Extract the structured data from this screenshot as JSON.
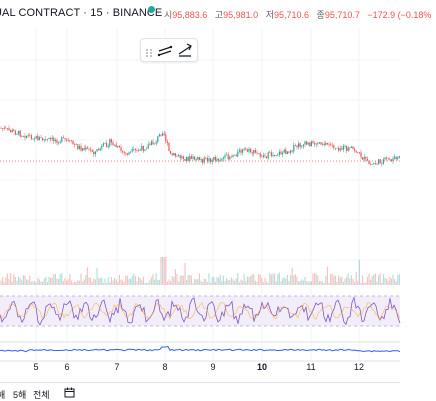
{
  "header": {
    "symbol": "UAL CONTRACT · 15 · BINANCE",
    "ohlc": [
      {
        "label": "시",
        "value": "95,883.6"
      },
      {
        "label": "고",
        "value": "95,981.0"
      },
      {
        "label": "저",
        "value": "95,710.6"
      },
      {
        "label": "종",
        "value": "95,710.7"
      }
    ],
    "change": "−172.9 (−0.18%",
    "status_color": "#26a69a"
  },
  "toolbox": {
    "icons": [
      "drag-handle-icon",
      "compare-icon",
      "indicators-icon"
    ]
  },
  "x_axis": {
    "labels": [
      "5",
      "6",
      "7",
      "8",
      "9",
      "10",
      "11",
      "12"
    ]
  },
  "bottom_bar": {
    "ranges": [
      "해",
      "5해",
      "전체"
    ],
    "calendar_icon": "calendar-icon"
  },
  "colors": {
    "up": "#26a69a",
    "down": "#ef5350",
    "rsi": "#7e57c2",
    "rsi_band": "#ede7f6",
    "lower_line": "#2962ff",
    "price_line": "#ef5350",
    "grid": "#f0f3fa"
  }
}
